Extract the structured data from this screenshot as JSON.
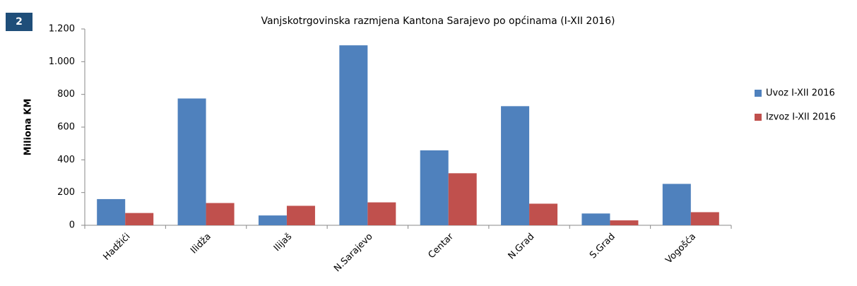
{
  "badge": "2",
  "chart_data": {
    "type": "bar",
    "title": "Vanjskotrgovinska razmjena Kantona Sarajevo po općinama (I-XII 2016)",
    "y_label": "Miliona KM",
    "categories": [
      "Hadžići",
      "Ilidža",
      "Ilijaš",
      "N.Sarajevo",
      "Centar",
      "N.Grad",
      "S.Grad",
      "Vogošća"
    ],
    "series": [
      {
        "name": "Uvoz I-XII 2016",
        "color": "#4f81bd",
        "values": [
          160,
          775,
          60,
          1100,
          458,
          728,
          72,
          253
        ]
      },
      {
        "name": "Izvoz I-XII 2016",
        "color": "#c0504d",
        "values": [
          75,
          136,
          119,
          140,
          318,
          132,
          30,
          80
        ]
      }
    ],
    "ylim": [
      0,
      1200
    ],
    "yticks": [
      0,
      200,
      400,
      600,
      800,
      {
        "value": 1000,
        "label": "1.000"
      },
      {
        "value": 1200,
        "label": "1.200"
      }
    ],
    "legend": "right"
  }
}
